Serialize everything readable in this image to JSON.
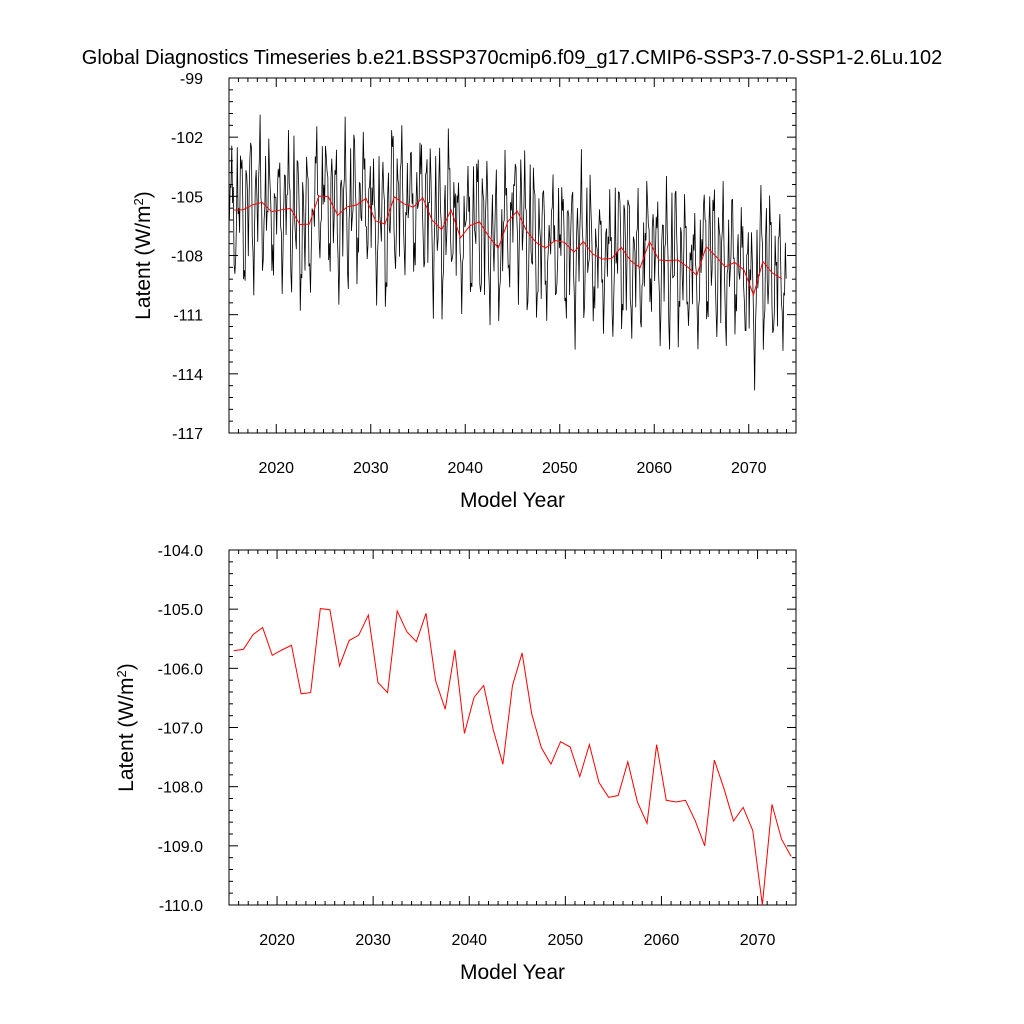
{
  "title": "Global Diagnostics Timeseries b.e21.BSSP370cmip6.f09_g17.CMIP6-SSP3-7.0-SSP1-2.6Lu.102",
  "chart_data": [
    {
      "type": "line",
      "xlabel": "Model Year",
      "ylabel_main": "Latent (W/m",
      "ylabel_sup": "2",
      "ylabel_close": ")",
      "xlim": [
        2015,
        2075
      ],
      "ylim": [
        -117,
        -99
      ],
      "xticks": [
        2020,
        2030,
        2040,
        2050,
        2060,
        2070
      ],
      "yticks": [
        -99,
        -102,
        -105,
        -108,
        -111,
        -114,
        -117
      ],
      "ytick_labels": [
        "-99",
        "-102",
        "-105",
        "-108",
        "-111",
        "-114",
        "-117"
      ],
      "grid": false,
      "series": [
        {
          "kind": "monthly",
          "color": "#000000",
          "x_start": 2015.042,
          "x_step": 0.08333,
          "annual_means": [
            -105.7,
            -105.68,
            -105.43,
            -105.31,
            -105.78,
            -105.69,
            -105.61,
            -106.43,
            -106.41,
            -104.99,
            -105.01,
            -105.96,
            -105.53,
            -105.44,
            -105.1,
            -106.24,
            -106.41,
            -105.03,
            -105.38,
            -105.55,
            -105.07,
            -106.21,
            -106.69,
            -105.69,
            -107.1,
            -106.49,
            -106.29,
            -107.04,
            -107.62,
            -106.29,
            -105.74,
            -106.77,
            -107.34,
            -107.62,
            -107.24,
            -107.33,
            -107.83,
            -107.29,
            -107.93,
            -108.18,
            -108.15,
            -107.58,
            -108.26,
            -108.62,
            -107.29,
            -108.23,
            -108.26,
            -108.23,
            -108.57,
            -109.0,
            -107.55,
            -108.03,
            -108.58,
            -108.35,
            -108.74,
            -110.0,
            -108.3,
            -108.89,
            -109.18
          ],
          "monthly_anomaly": [
            -1.2,
            0.4,
            2.4,
            2.9,
            1.6,
            -0.3,
            -2.8,
            -3.3,
            -2.1,
            0.6,
            1.9,
            0.2
          ]
        },
        {
          "kind": "annual",
          "color": "#ff0000",
          "x": [
            2015.5,
            2016.5,
            2017.5,
            2018.5,
            2019.5,
            2020.5,
            2021.5,
            2022.5,
            2023.5,
            2024.5,
            2025.5,
            2026.5,
            2027.5,
            2028.5,
            2029.5,
            2030.5,
            2031.5,
            2032.5,
            2033.5,
            2034.5,
            2035.5,
            2036.5,
            2037.5,
            2038.5,
            2039.5,
            2040.5,
            2041.5,
            2042.5,
            2043.5,
            2044.5,
            2045.5,
            2046.5,
            2047.5,
            2048.5,
            2049.5,
            2050.5,
            2051.5,
            2052.5,
            2053.5,
            2054.5,
            2055.5,
            2056.5,
            2057.5,
            2058.5,
            2059.5,
            2060.5,
            2061.5,
            2062.5,
            2063.5,
            2064.5,
            2065.5,
            2066.5,
            2067.5,
            2068.5,
            2069.5,
            2070.5,
            2071.5,
            2072.5,
            2073.5
          ],
          "values": [
            -105.7,
            -105.68,
            -105.43,
            -105.31,
            -105.78,
            -105.69,
            -105.61,
            -106.43,
            -106.41,
            -104.99,
            -105.01,
            -105.96,
            -105.53,
            -105.44,
            -105.1,
            -106.24,
            -106.41,
            -105.03,
            -105.38,
            -105.55,
            -105.07,
            -106.21,
            -106.69,
            -105.69,
            -107.1,
            -106.49,
            -106.29,
            -107.04,
            -107.62,
            -106.29,
            -105.74,
            -106.77,
            -107.34,
            -107.62,
            -107.24,
            -107.33,
            -107.83,
            -107.29,
            -107.93,
            -108.18,
            -108.15,
            -107.58,
            -108.26,
            -108.62,
            -107.29,
            -108.23,
            -108.26,
            -108.23,
            -108.57,
            -109.0,
            -107.55,
            -108.03,
            -108.58,
            -108.35,
            -108.74,
            -110.0,
            -108.3,
            -108.89,
            -109.18
          ]
        }
      ]
    },
    {
      "type": "line",
      "xlabel": "Model Year",
      "ylabel_main": "Latent (W/m",
      "ylabel_sup": "2",
      "ylabel_close": ")",
      "xlim": [
        2015,
        2074
      ],
      "ylim": [
        -110,
        -104
      ],
      "xticks": [
        2020,
        2030,
        2040,
        2050,
        2060,
        2070
      ],
      "yticks": [
        -104,
        -105,
        -106,
        -107,
        -108,
        -109,
        -110
      ],
      "ytick_labels": [
        "-104.0",
        "-105.0",
        "-106.0",
        "-107.0",
        "-108.0",
        "-109.0",
        "-110.0"
      ],
      "grid": false,
      "series": [
        {
          "kind": "annual",
          "color": "#ff0000",
          "x": [
            2015.5,
            2016.5,
            2017.5,
            2018.5,
            2019.5,
            2020.5,
            2021.5,
            2022.5,
            2023.5,
            2024.5,
            2025.5,
            2026.5,
            2027.5,
            2028.5,
            2029.5,
            2030.5,
            2031.5,
            2032.5,
            2033.5,
            2034.5,
            2035.5,
            2036.5,
            2037.5,
            2038.5,
            2039.5,
            2040.5,
            2041.5,
            2042.5,
            2043.5,
            2044.5,
            2045.5,
            2046.5,
            2047.5,
            2048.5,
            2049.5,
            2050.5,
            2051.5,
            2052.5,
            2053.5,
            2054.5,
            2055.5,
            2056.5,
            2057.5,
            2058.5,
            2059.5,
            2060.5,
            2061.5,
            2062.5,
            2063.5,
            2064.5,
            2065.5,
            2066.5,
            2067.5,
            2068.5,
            2069.5,
            2070.5,
            2071.5,
            2072.5,
            2073.5
          ],
          "values": [
            -105.7,
            -105.68,
            -105.43,
            -105.31,
            -105.78,
            -105.69,
            -105.61,
            -106.43,
            -106.41,
            -104.99,
            -105.01,
            -105.96,
            -105.53,
            -105.44,
            -105.1,
            -106.24,
            -106.41,
            -105.03,
            -105.38,
            -105.55,
            -105.07,
            -106.21,
            -106.69,
            -105.69,
            -107.1,
            -106.49,
            -106.29,
            -107.04,
            -107.62,
            -106.29,
            -105.74,
            -106.77,
            -107.34,
            -107.62,
            -107.24,
            -107.33,
            -107.83,
            -107.29,
            -107.93,
            -108.18,
            -108.15,
            -107.58,
            -108.26,
            -108.62,
            -107.29,
            -108.23,
            -108.26,
            -108.23,
            -108.57,
            -109.0,
            -107.55,
            -108.03,
            -108.58,
            -108.35,
            -108.74,
            -110.0,
            -108.3,
            -108.89,
            -109.18
          ]
        }
      ]
    }
  ]
}
